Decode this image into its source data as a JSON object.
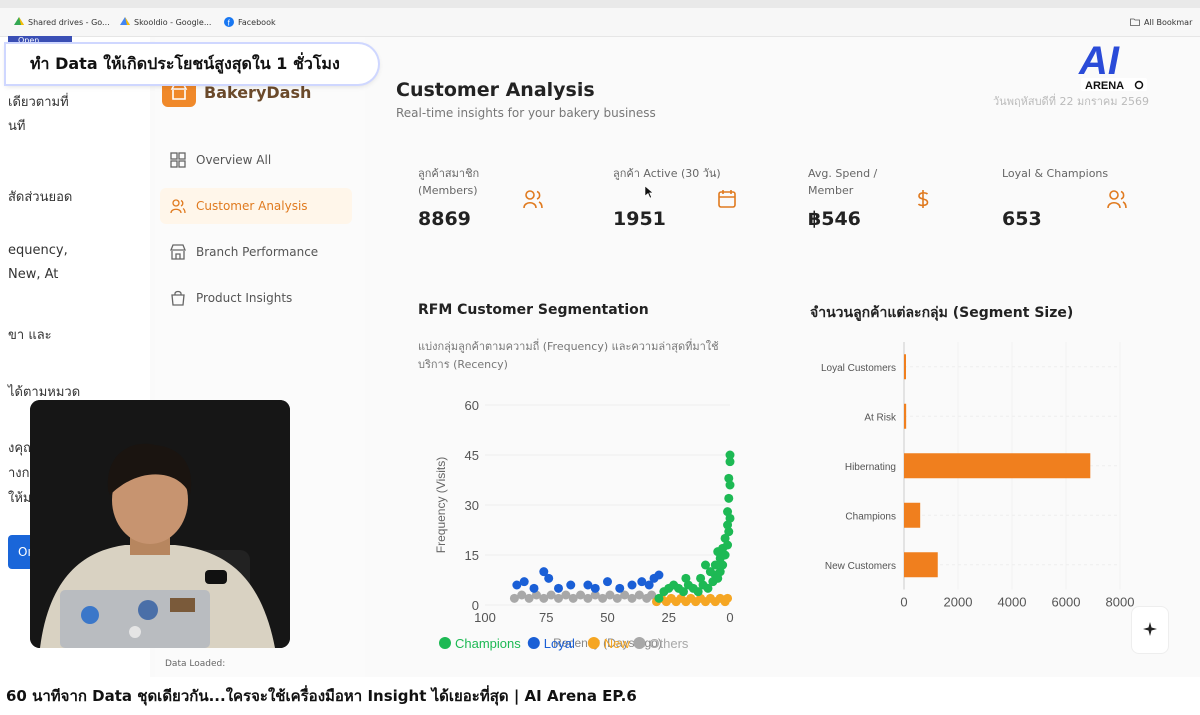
{
  "bookmarks": [
    {
      "label": "Shared drives - Go...",
      "icon": "drive-icon"
    },
    {
      "label": "Skooldio - Google...",
      "icon": "drive-icon"
    },
    {
      "label": "Facebook",
      "icon": "facebook-icon"
    }
  ],
  "bookmarks_right": "All Bookmar",
  "overlay": {
    "banner": "ทำ Data ให้เกิดประโยชน์สูงสุดใน 1 ชั่วโมง",
    "tab": "Open",
    "logo_letters": "AI",
    "logo_text": "ARENA"
  },
  "left_pane_lines": [
    "เดียวตามที่",
    "นที",
    "สัดส่วนยอด",
    "equency,",
    "New, At",
    "ขา และ",
    "ได้ตามหมวด",
    "งคุณ",
    "างก",
    "ให้ม",
    "Oı"
  ],
  "sidebar": {
    "brand": "BakeryDash",
    "items": [
      {
        "label": "Overview All",
        "icon": "grid-icon",
        "active": false
      },
      {
        "label": "Customer Analysis",
        "icon": "users-icon",
        "active": true
      },
      {
        "label": "Branch Performance",
        "icon": "store-icon",
        "active": false
      },
      {
        "label": "Product Insights",
        "icon": "bag-icon",
        "active": false
      }
    ],
    "footer": "Data Loaded:"
  },
  "header": {
    "title": "Customer Analysis",
    "subtitle": "Real-time insights for your bakery business",
    "date": "วันพฤหัสบดีที่ 22 มกราคม 2569"
  },
  "kpis": [
    {
      "label": "ลูกค้าสมาชิก (Members)",
      "value": "8869",
      "icon": "users-icon"
    },
    {
      "label": "ลูกค้า Active (30 วัน)",
      "value": "1951",
      "icon": "calendar-icon"
    },
    {
      "label": "Avg. Spend / Member",
      "value": "฿546",
      "icon": "dollar-icon"
    },
    {
      "label": "Loyal & Champions",
      "value": "653",
      "icon": "users-icon"
    }
  ],
  "rfm": {
    "title": "RFM Customer Segmentation",
    "description": "แบ่งกลุ่มลูกค้าตามความถี่ (Frequency) และความล่าสุดที่มาใช้บริการ (Recency)"
  },
  "segment": {
    "title": "จำนวนลูกค้าแต่ละกลุ่ม (Segment Size)"
  },
  "caption": "60 นาทีจาก Data ชุดเดียวกัน...ใครจะใช้เครื่องมือหา Insight ได้เยอะที่สุด | AI Arena EP.6",
  "colors": {
    "accent": "#f0892a",
    "champions": "#1db954",
    "loyal": "#1a5fd6",
    "new": "#f5a623",
    "others": "#a8a8a8",
    "bar": "#f07f1e"
  },
  "chart_data": [
    {
      "type": "scatter",
      "title": "RFM Customer Segmentation",
      "xlabel": "Recency (Days ago)",
      "ylabel": "Frequency (Visits)",
      "xlim": [
        100,
        0
      ],
      "ylim": [
        0,
        60
      ],
      "xticks": [
        100,
        75,
        50,
        25,
        0
      ],
      "yticks": [
        0,
        15,
        30,
        45,
        60
      ],
      "legend": [
        "Champions",
        "Loyal",
        "New",
        "Others"
      ],
      "series": [
        {
          "name": "Champions",
          "points": [
            [
              29,
              2
            ],
            [
              27,
              4
            ],
            [
              25,
              5
            ],
            [
              23,
              6
            ],
            [
              21,
              5
            ],
            [
              19,
              4
            ],
            [
              17,
              6
            ],
            [
              15,
              5
            ],
            [
              13,
              4
            ],
            [
              11,
              6
            ],
            [
              9,
              5
            ],
            [
              7,
              7
            ],
            [
              6,
              9
            ],
            [
              5,
              8
            ],
            [
              4,
              10
            ],
            [
              4,
              14
            ],
            [
              3,
              12
            ],
            [
              3,
              17
            ],
            [
              2,
              15
            ],
            [
              2,
              20
            ],
            [
              1,
              18
            ],
            [
              1,
              24
            ],
            [
              1,
              28
            ],
            [
              0.5,
              22
            ],
            [
              0.5,
              32
            ],
            [
              0.5,
              38
            ],
            [
              0,
              26
            ],
            [
              0,
              36
            ],
            [
              0,
              43
            ],
            [
              0,
              45
            ],
            [
              18,
              8
            ],
            [
              12,
              8
            ],
            [
              8,
              10
            ],
            [
              10,
              12
            ],
            [
              5,
              16
            ],
            [
              6,
              12
            ]
          ]
        },
        {
          "name": "Loyal",
          "points": [
            [
              87,
              6
            ],
            [
              84,
              7
            ],
            [
              80,
              5
            ],
            [
              76,
              10
            ],
            [
              74,
              8
            ],
            [
              70,
              5
            ],
            [
              65,
              6
            ],
            [
              58,
              6
            ],
            [
              55,
              5
            ],
            [
              50,
              7
            ],
            [
              45,
              5
            ],
            [
              40,
              6
            ],
            [
              36,
              7
            ],
            [
              33,
              6
            ],
            [
              31,
              8
            ],
            [
              29,
              9
            ]
          ]
        },
        {
          "name": "New",
          "points": [
            [
              30,
              1
            ],
            [
              28,
              2
            ],
            [
              26,
              1
            ],
            [
              24,
              2
            ],
            [
              22,
              1
            ],
            [
              20,
              2
            ],
            [
              18,
              1
            ],
            [
              16,
              2
            ],
            [
              14,
              1
            ],
            [
              12,
              2
            ],
            [
              10,
              1
            ],
            [
              8,
              2
            ],
            [
              6,
              1
            ],
            [
              4,
              2
            ],
            [
              2,
              1
            ],
            [
              1,
              2
            ]
          ]
        },
        {
          "name": "Others",
          "points": [
            [
              88,
              2
            ],
            [
              85,
              3
            ],
            [
              82,
              2
            ],
            [
              79,
              3
            ],
            [
              76,
              2
            ],
            [
              73,
              3
            ],
            [
              70,
              2
            ],
            [
              67,
              3
            ],
            [
              64,
              2
            ],
            [
              61,
              3
            ],
            [
              58,
              2
            ],
            [
              55,
              3
            ],
            [
              52,
              2
            ],
            [
              49,
              3
            ],
            [
              46,
              2
            ],
            [
              43,
              3
            ],
            [
              40,
              2
            ],
            [
              37,
              3
            ],
            [
              34,
              2
            ],
            [
              32,
              3
            ]
          ]
        }
      ]
    },
    {
      "type": "bar",
      "orientation": "horizontal",
      "title": "จำนวนลูกค้าแต่ละกลุ่ม (Segment Size)",
      "categories": [
        "Loyal Customers",
        "At Risk",
        "Hibernating",
        "Champions",
        "New Customers"
      ],
      "values": [
        20,
        80,
        6900,
        600,
        1250
      ],
      "xlim": [
        0,
        8000
      ],
      "xticks": [
        0,
        2000,
        4000,
        6000,
        8000
      ]
    }
  ]
}
